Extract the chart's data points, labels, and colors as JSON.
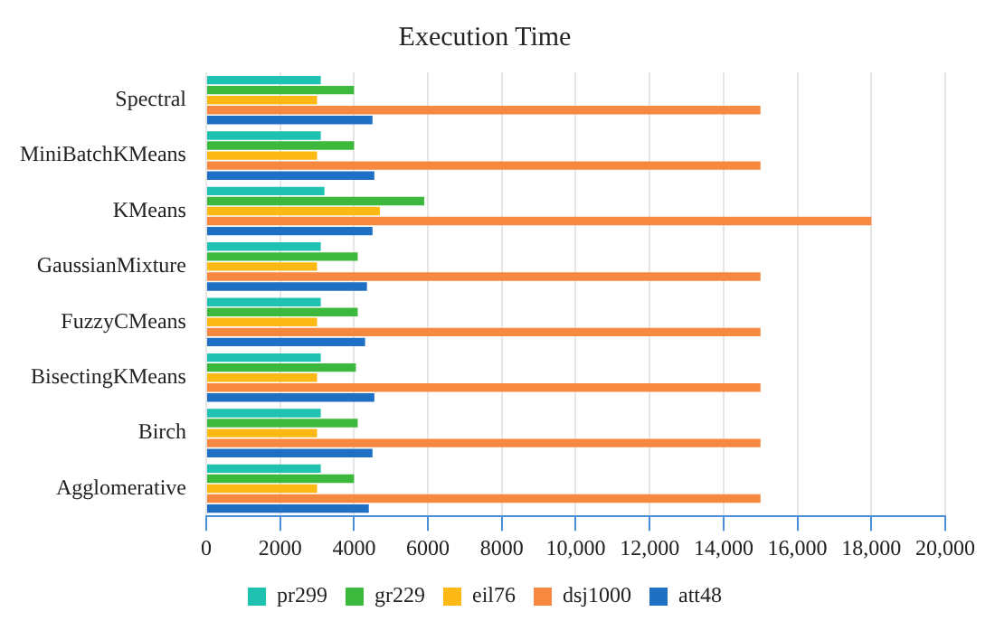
{
  "chart_data": {
    "type": "bar",
    "orientation": "horizontal",
    "title": "Execution Time",
    "categories": [
      "Spectral",
      "MiniBatchKMeans",
      "KMeans",
      "GaussianMixture",
      "FuzzyCMeans",
      "BisectingKMeans",
      "Birch",
      "Agglomerative"
    ],
    "series": [
      {
        "name": "pr299",
        "color": "#1fc1b1",
        "values": [
          3100,
          3100,
          3200,
          3100,
          3100,
          3100,
          3100,
          3100
        ]
      },
      {
        "name": "gr229",
        "color": "#3cb83c",
        "values": [
          4000,
          4000,
          5900,
          4100,
          4100,
          4050,
          4100,
          4000
        ]
      },
      {
        "name": "eil76",
        "color": "#fdb913",
        "values": [
          3000,
          3000,
          4700,
          3000,
          3000,
          3000,
          3000,
          3000
        ]
      },
      {
        "name": "dsj1000",
        "color": "#f7883f",
        "values": [
          15000,
          15000,
          18000,
          15000,
          15000,
          15000,
          15000,
          15000
        ]
      },
      {
        "name": "att48",
        "color": "#1f6fc5",
        "values": [
          4500,
          4550,
          4500,
          4350,
          4300,
          4550,
          4500,
          4400
        ]
      }
    ],
    "xlim": [
      0,
      20000
    ],
    "xticks": [
      0,
      2000,
      4000,
      6000,
      8000,
      {
        "value": 10000,
        "label": "10,000"
      },
      {
        "value": 12000,
        "label": "12,000"
      },
      {
        "value": 14000,
        "label": "14,000"
      },
      {
        "value": 16000,
        "label": "16,000"
      },
      {
        "value": 18000,
        "label": "18,000"
      },
      {
        "value": 20000,
        "label": "20,000"
      }
    ],
    "grid": "x",
    "legend": "bottom"
  }
}
